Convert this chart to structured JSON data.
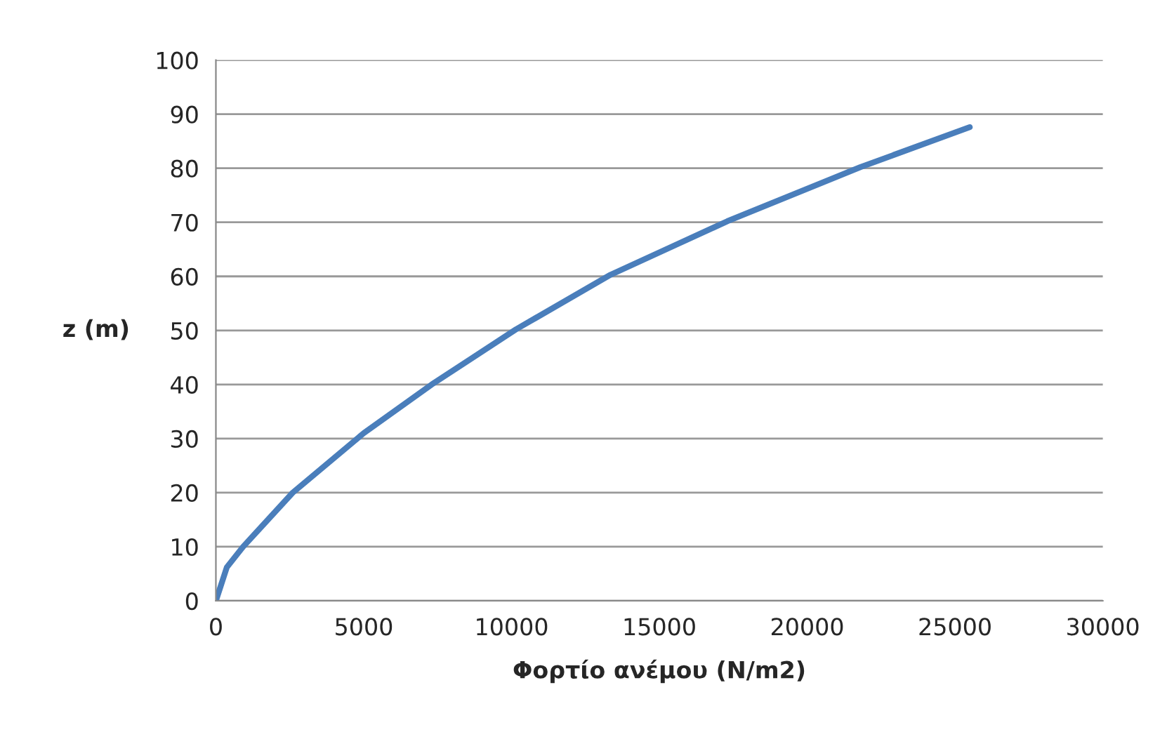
{
  "chart_data": {
    "type": "line",
    "xlabel": "Φορτίο ανέμου (N/m2)",
    "ylabel": "z (m)",
    "x": [
      0,
      370,
      920,
      2600,
      5000,
      7300,
      10150,
      13350,
      15550,
      17300,
      21800,
      25500
    ],
    "series": [
      {
        "color": "#4a7ebb",
        "values": [
          0,
          6.2,
          10,
          20,
          31,
          40,
          50.2,
          60.3,
          65.8,
          70.2,
          80.2,
          87.6
        ]
      }
    ],
    "xlim": [
      0,
      30000
    ],
    "xticks": [
      0,
      5000,
      10000,
      15000,
      20000,
      25000,
      30000
    ],
    "ylim": [
      0,
      100
    ],
    "yticks": [
      0,
      10,
      20,
      30,
      40,
      50,
      60,
      70,
      80,
      90,
      100
    ],
    "grid": "y",
    "legend": false,
    "marker": "none",
    "line_style": "solid"
  }
}
